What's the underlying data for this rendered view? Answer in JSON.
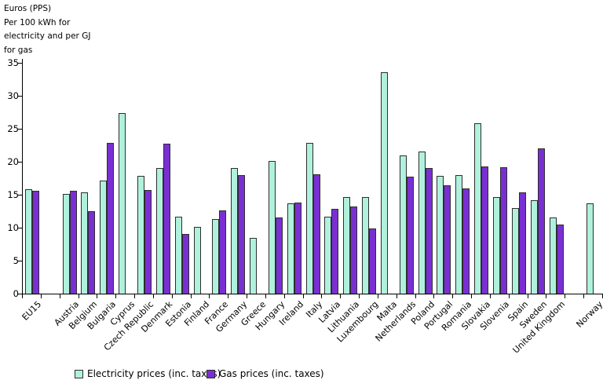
{
  "y_axis_title_lines": [
    "Euros (PPS)",
    "Per 100 kWh for",
    "electricity and per GJ",
    "for gas"
  ],
  "colors": {
    "electricity": "#b0f1dd",
    "gas": "#7a2fd3",
    "bar_border": "#2e2e2e",
    "axis": "#000000"
  },
  "chart_data": {
    "type": "bar",
    "title": "Euros (PPS) Per 100 kWh for electricity and per GJ for gas",
    "xlabel": "",
    "ylabel": "Euros (PPS) per 100 kWh for electricity and per GJ for gas",
    "ylim": [
      0,
      35
    ],
    "yticks": [
      0,
      5,
      10,
      15,
      20,
      25,
      30,
      35
    ],
    "grid": false,
    "legend_position": "bottom",
    "categories": [
      "EU15",
      "Austria",
      "Belgium",
      "Bulgaria",
      "Cyprus",
      "Czech Republic",
      "Denmark",
      "Estonia",
      "Finland",
      "France",
      "Germany",
      "Greece",
      "Hungary",
      "Ireland",
      "Italy",
      "Latvia",
      "Lithuania",
      "Luxembourg",
      "Malta",
      "Netherlands",
      "Poland",
      "Portugal",
      "Romania",
      "Slovakia",
      "Slovenia",
      "Spain",
      "Sweden",
      "United Kingdom",
      "Norway"
    ],
    "spacers_after_category_index": [
      0,
      27
    ],
    "series": [
      {
        "name": "Electricity prices (inc. taxes)",
        "color": "#b0f1dd",
        "values": [
          15.8,
          15.1,
          15.4,
          17.1,
          27.4,
          17.8,
          19.1,
          11.7,
          10.1,
          11.3,
          19.0,
          8.5,
          20.1,
          13.7,
          22.8,
          11.7,
          14.6,
          14.6,
          33.6,
          20.9,
          21.5,
          17.8,
          18.0,
          25.8,
          14.7,
          13.0,
          14.2,
          11.6,
          13.7
        ]
      },
      {
        "name": "Gas prices (inc. taxes)",
        "color": "#7a2fd3",
        "values": [
          15.6,
          15.6,
          12.5,
          22.8,
          null,
          15.7,
          22.7,
          9.1,
          null,
          12.6,
          18.0,
          null,
          11.6,
          13.8,
          18.1,
          12.8,
          13.2,
          9.9,
          null,
          17.7,
          19.1,
          16.4,
          15.9,
          19.3,
          19.2,
          15.3,
          22.0,
          10.5,
          null
        ]
      }
    ]
  },
  "legend": {
    "items": [
      {
        "label": "Electricity prices (inc. taxes)"
      },
      {
        "label": "Gas prices (inc. taxes)"
      }
    ]
  }
}
